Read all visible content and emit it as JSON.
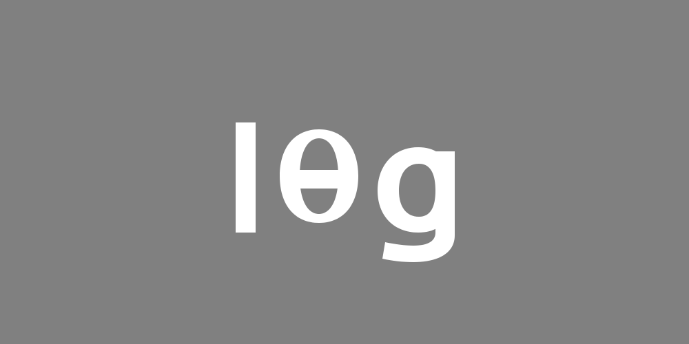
{
  "logo": {
    "text": "lθg",
    "text_color": "#ffffff",
    "background_color": "#808080"
  }
}
